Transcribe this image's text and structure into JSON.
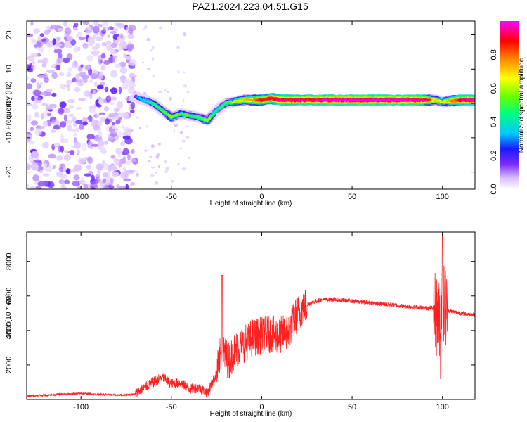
{
  "title": "PAZ1.2024.223.04.51.G15",
  "chart_data": [
    {
      "type": "heatmap",
      "title": "PAZ1.2024.223.04.51.G15",
      "xlabel": "Height of straight line (km)",
      "ylabel": "Frequency (Hz)",
      "xlim": [
        -130,
        118
      ],
      "ylim": [
        -25,
        24
      ],
      "xticks": [
        -100,
        -50,
        0,
        50,
        100
      ],
      "yticks": [
        -20,
        -10,
        0,
        10,
        20
      ],
      "colorbar": {
        "label": "Normalized spectral amplitude",
        "range": [
          0,
          1
        ],
        "ticks": [
          0.0,
          0.2,
          0.4,
          0.6,
          0.8
        ],
        "colors": [
          "#ffffff",
          "#8a2be2",
          "#1f1fff",
          "#00e5ff",
          "#00ff40",
          "#ffff00",
          "#ff8000",
          "#ff0000",
          "#ff00ff"
        ]
      },
      "ridge": {
        "x": [
          -70,
          -65,
          -60,
          -55,
          -50,
          -45,
          -40,
          -35,
          -30,
          -25,
          -20,
          -15,
          -10,
          -5,
          0,
          5,
          10,
          20,
          40,
          60,
          80,
          90,
          95,
          100,
          110,
          118
        ],
        "freq": [
          2,
          1,
          0,
          -2,
          -4,
          -3,
          -3.5,
          -4,
          -5,
          -2,
          0,
          0.5,
          1,
          1,
          1,
          1.5,
          1,
          1,
          1,
          1,
          1,
          1,
          1,
          0.5,
          1,
          1
        ],
        "amplitude": [
          0.3,
          0.4,
          0.5,
          0.5,
          0.6,
          0.5,
          0.5,
          0.5,
          0.6,
          0.4,
          0.5,
          0.6,
          0.7,
          0.8,
          0.9,
          0.9,
          0.95,
          0.95,
          1.0,
          1.0,
          1.0,
          0.95,
          0.7,
          0.6,
          0.95,
          0.95
        ]
      },
      "noise_region_x": [
        -130,
        -70
      ]
    },
    {
      "type": "line",
      "xlabel": "Height of straight line (km)",
      "ylabel": "SNR (10 * v/v)",
      "xlim": [
        -130,
        118
      ],
      "ylim": [
        0,
        9700
      ],
      "xticks": [
        -100,
        -50,
        0,
        50,
        100
      ],
      "yticks": [
        2000,
        4000,
        6000,
        8000
      ],
      "color": "#ff2020",
      "series": [
        {
          "x": [
            -130,
            -120,
            -110,
            -100,
            -90,
            -80,
            -70,
            -65,
            -60,
            -55,
            -50,
            -45,
            -40,
            -35,
            -30,
            -25,
            -22,
            -20,
            -18,
            -15,
            -10,
            -5,
            0,
            5,
            10,
            15,
            20,
            25,
            30,
            35,
            40,
            50,
            60,
            70,
            80,
            90,
            95,
            98,
            100,
            102,
            105,
            110,
            118
          ],
          "y": [
            200,
            250,
            300,
            350,
            300,
            250,
            300,
            700,
            1000,
            1300,
            900,
            1000,
            600,
            700,
            400,
            1500,
            3000,
            2500,
            2200,
            2800,
            3200,
            3600,
            3700,
            3800,
            3700,
            4000,
            5000,
            5500,
            5700,
            5800,
            5800,
            5700,
            5600,
            5500,
            5400,
            5300,
            5300,
            4500,
            6000,
            5200,
            5100,
            5000,
            4900
          ]
        }
      ]
    }
  ]
}
